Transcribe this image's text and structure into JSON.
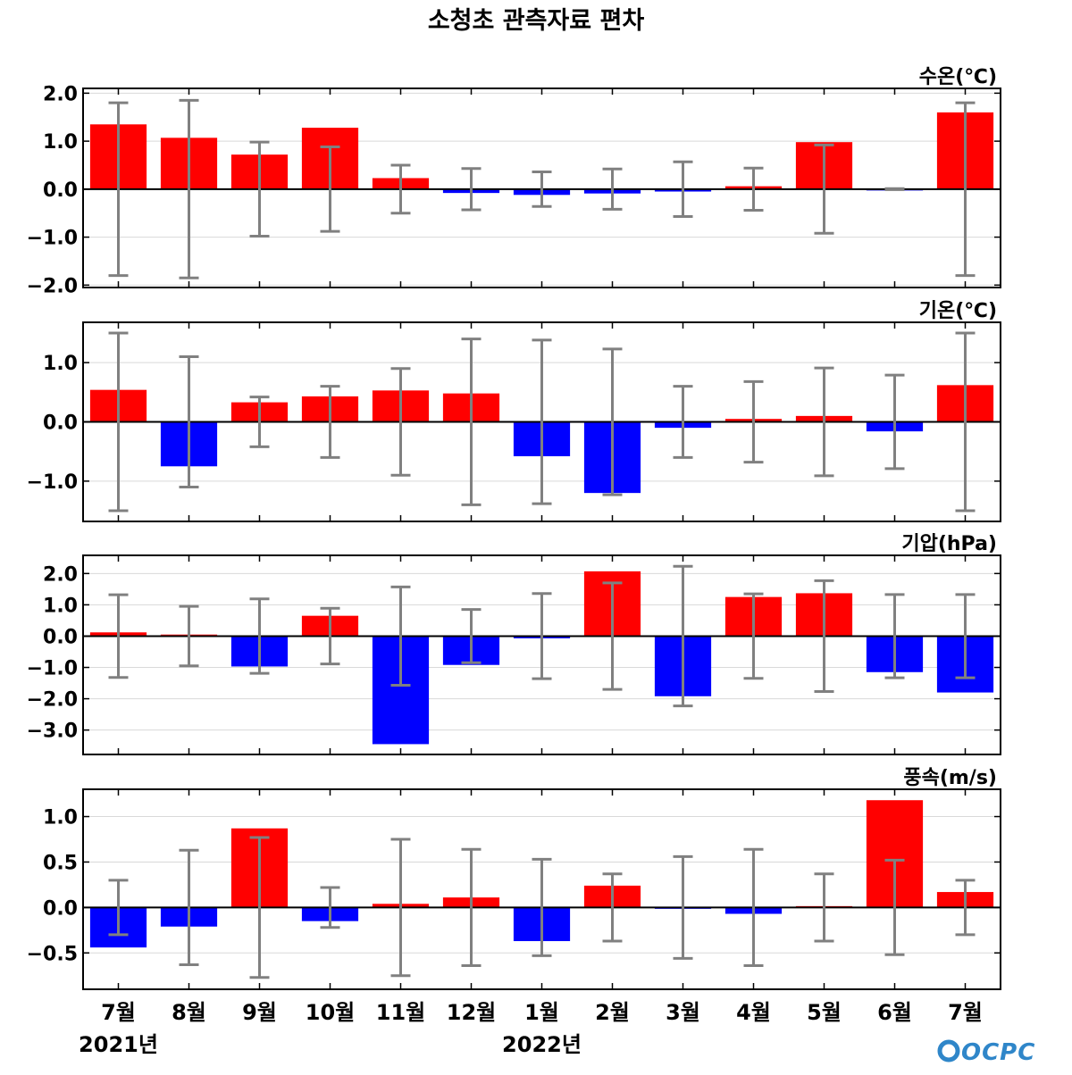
{
  "title": "소청초 관측자료 편차",
  "logo_text": "OCPC",
  "logo_color": "#2f86c9",
  "colors": {
    "positive": "#ff0000",
    "negative": "#0000ff",
    "errorbar": "#808080",
    "zero_line": "#000000",
    "grid": "#d9d9d9"
  },
  "x_tick_labels": [
    "7월",
    "8월",
    "9월",
    "10월",
    "11월",
    "12월",
    "1월",
    "2월",
    "3월",
    "4월",
    "5월",
    "6월",
    "7월"
  ],
  "year_labels": [
    {
      "text": "2021년",
      "category_index": 0
    },
    {
      "text": "2022년",
      "category_index": 6
    }
  ],
  "chart_data": [
    {
      "type": "bar",
      "unit_label": "수온(℃)",
      "categories": [
        "7월",
        "8월",
        "9월",
        "10월",
        "11월",
        "12월",
        "1월",
        "2월",
        "3월",
        "4월",
        "5월",
        "6월",
        "7월"
      ],
      "values": [
        1.35,
        1.07,
        0.72,
        1.28,
        0.23,
        -0.08,
        -0.12,
        -0.09,
        -0.05,
        0.06,
        0.98,
        -0.01,
        1.6
      ],
      "error": [
        1.8,
        1.85,
        0.98,
        0.88,
        0.5,
        0.43,
        0.36,
        0.42,
        0.57,
        0.44,
        0.92,
        0.01,
        1.8
      ],
      "ylim": [
        -2.05,
        2.1
      ],
      "yticks": [
        2.0,
        1.0,
        0.0,
        -1.0,
        -2.0
      ],
      "ytick_labels": [
        "2.0",
        "1.0",
        "0.0",
        "−1.0",
        "−2.0"
      ]
    },
    {
      "type": "bar",
      "unit_label": "기온(℃)",
      "categories": [
        "7월",
        "8월",
        "9월",
        "10월",
        "11월",
        "12월",
        "1월",
        "2월",
        "3월",
        "4월",
        "5월",
        "6월",
        "7월"
      ],
      "values": [
        0.54,
        -0.75,
        0.33,
        0.43,
        0.53,
        0.48,
        -0.58,
        -1.2,
        -0.1,
        0.05,
        0.1,
        -0.16,
        0.62
      ],
      "error": [
        1.5,
        1.1,
        0.42,
        0.6,
        0.9,
        1.4,
        1.38,
        1.23,
        0.6,
        0.68,
        0.91,
        0.79,
        1.5
      ],
      "ylim": [
        -1.68,
        1.68
      ],
      "yticks": [
        1.0,
        0.0,
        -1.0
      ],
      "ytick_labels": [
        "1.0",
        "0.0",
        "−1.0"
      ]
    },
    {
      "type": "bar",
      "unit_label": "기압(hPa)",
      "categories": [
        "7월",
        "8월",
        "9월",
        "10월",
        "11월",
        "12월",
        "1월",
        "2월",
        "3월",
        "4월",
        "5월",
        "6월",
        "7월"
      ],
      "values": [
        0.12,
        0.05,
        -0.97,
        0.65,
        -3.45,
        -0.92,
        -0.07,
        2.07,
        -1.92,
        1.25,
        1.37,
        -1.15,
        -1.8
      ],
      "error": [
        1.32,
        0.95,
        1.19,
        0.89,
        1.57,
        0.85,
        1.36,
        1.7,
        2.23,
        1.35,
        1.77,
        1.33,
        1.33
      ],
      "ylim": [
        -3.78,
        2.58
      ],
      "yticks": [
        2.0,
        1.0,
        0.0,
        -1.0,
        -2.0,
        -3.0
      ],
      "ytick_labels": [
        "2.0",
        "1.0",
        "0.0",
        "−1.0",
        "−2.0",
        "−3.0"
      ]
    },
    {
      "type": "bar",
      "unit_label": "풍속(m/s)",
      "categories": [
        "7월",
        "8월",
        "9월",
        "10월",
        "11월",
        "12월",
        "1월",
        "2월",
        "3월",
        "4월",
        "5월",
        "6월",
        "7월"
      ],
      "values": [
        -0.44,
        -0.21,
        0.87,
        -0.15,
        0.04,
        0.11,
        -0.37,
        0.24,
        -0.01,
        -0.07,
        0.01,
        1.18,
        0.17
      ],
      "error": [
        0.3,
        0.63,
        0.77,
        0.22,
        0.75,
        0.64,
        0.53,
        0.37,
        0.56,
        0.64,
        0.37,
        0.52,
        0.3
      ],
      "ylim": [
        -0.9,
        1.3
      ],
      "yticks": [
        1.0,
        0.5,
        0.0,
        -0.5
      ],
      "ytick_labels": [
        "1.0",
        "0.5",
        "0.0",
        "−0.5"
      ]
    }
  ]
}
